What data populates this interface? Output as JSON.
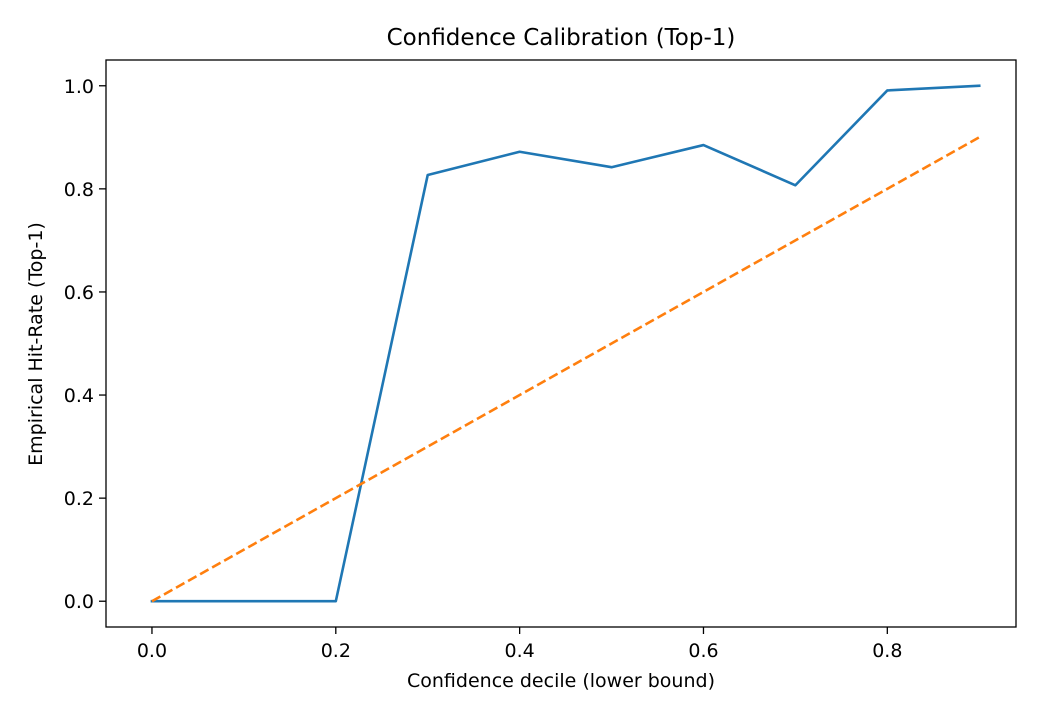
{
  "chart_data": {
    "type": "line",
    "title": "Confidence Calibration (Top-1)",
    "xlabel": "Confidence decile (lower bound)",
    "ylabel": "Empirical Hit-Rate (Top-1)",
    "xlim": [
      -0.05,
      0.94
    ],
    "ylim": [
      -0.05,
      1.05
    ],
    "xticks": [
      "0.0",
      "0.2",
      "0.4",
      "0.6",
      "0.8"
    ],
    "yticks": [
      "0.0",
      "0.2",
      "0.4",
      "0.6",
      "0.8",
      "1.0"
    ],
    "grid": false,
    "series": [
      {
        "color": "#1f77b4",
        "style": "solid",
        "x": [
          0.0,
          0.1,
          0.2,
          0.3,
          0.4,
          0.5,
          0.6,
          0.7,
          0.8,
          0.9
        ],
        "y": [
          0.0,
          0.0,
          0.0,
          0.827,
          0.872,
          0.842,
          0.885,
          0.807,
          0.991,
          1.0
        ]
      },
      {
        "color": "#ff7f0e",
        "style": "dashed",
        "x": [
          0.0,
          0.9
        ],
        "y": [
          0.0,
          0.9
        ]
      }
    ]
  }
}
